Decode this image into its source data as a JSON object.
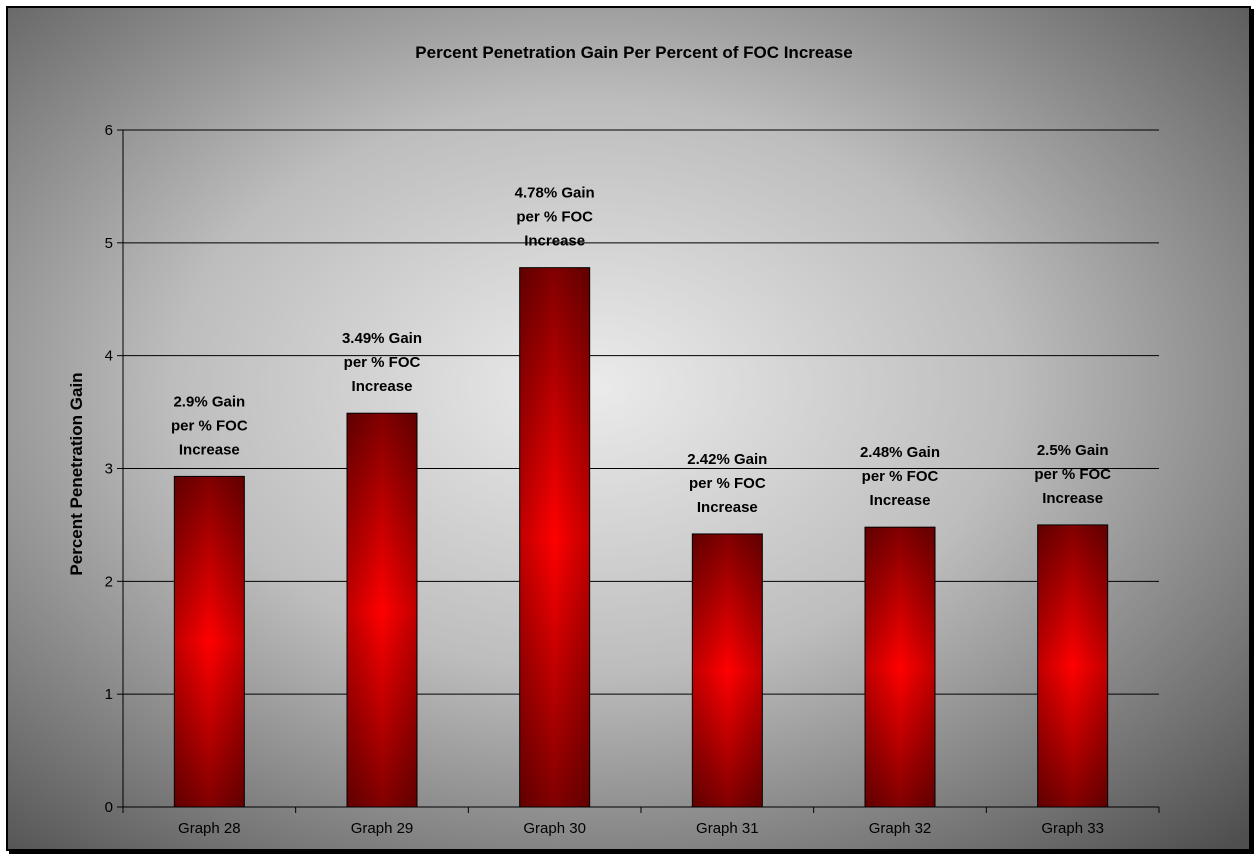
{
  "chart_data": {
    "type": "bar",
    "title": "Percent Penetration Gain Per Percent of FOC Increase",
    "xlabel": "",
    "ylabel": "Percent Penetration Gain",
    "categories": [
      "Graph 28",
      "Graph 29",
      "Graph 30",
      "Graph 31",
      "Graph 32",
      "Graph 33"
    ],
    "values": [
      2.93,
      3.49,
      4.78,
      2.42,
      2.48,
      2.5
    ],
    "data_labels": [
      [
        "2.9% Gain",
        "per % FOC",
        "Increase"
      ],
      [
        "3.49% Gain",
        "per % FOC",
        "Increase"
      ],
      [
        "4.78% Gain",
        "per % FOC",
        "Increase"
      ],
      [
        "2.42% Gain",
        "per % FOC",
        "Increase"
      ],
      [
        "2.48% Gain",
        "per % FOC",
        "Increase"
      ],
      [
        "2.5% Gain",
        "per % FOC",
        "Increase"
      ]
    ],
    "ylim": [
      0,
      6
    ],
    "yticks": [
      "0",
      "1",
      "2",
      "3",
      "4",
      "5",
      "6"
    ],
    "grid": true,
    "legend": "none",
    "colors": {
      "bar_edge": "#8b0000",
      "bar_center": "#ff0000",
      "bar_outline": "#000000",
      "background_center": "#e6e6e6",
      "background_edge": "#555555"
    }
  }
}
